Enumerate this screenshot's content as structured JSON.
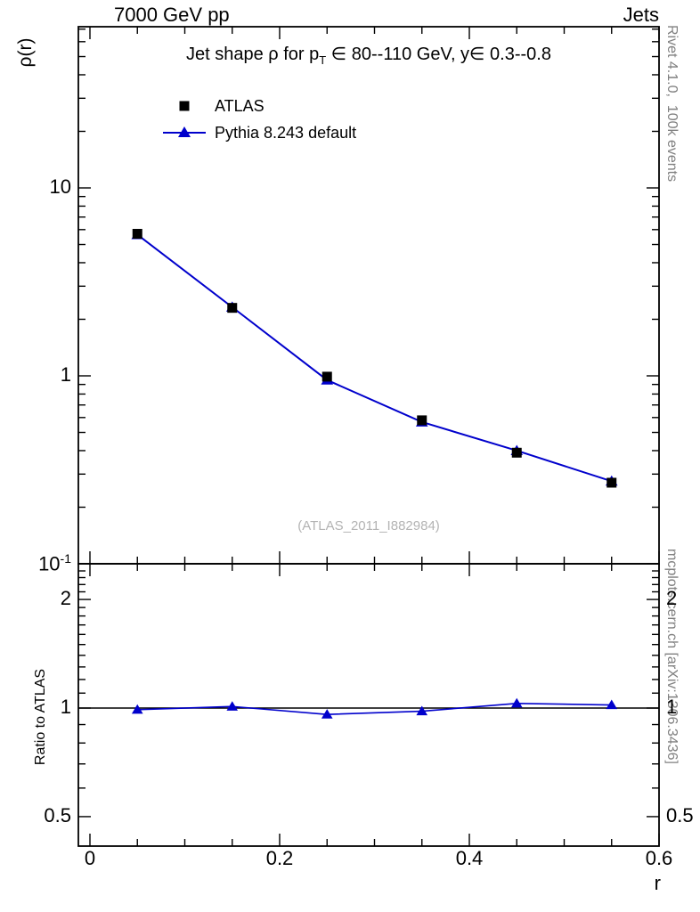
{
  "header": {
    "left": "7000 GeV pp",
    "right": "Jets"
  },
  "main_panel": {
    "y_axis_label": "ρ(r)",
    "title_parts": {
      "pre": "Jet shape ρ for p",
      "sub": "T",
      "post": " ∈ 80--110 GeV, y∈ 0.3--0.8"
    },
    "watermark": "(ATLAS_2011_I882984)",
    "legend": [
      {
        "label": "ATLAS",
        "marker": "square",
        "color": "#000000"
      },
      {
        "label": "Pythia 8.243 default",
        "marker": "triangle-line",
        "color": "#0000cc"
      }
    ]
  },
  "ratio_panel": {
    "y_axis_label": "Ratio to ATLAS"
  },
  "x_axis": {
    "label": "r"
  },
  "side_notes": {
    "top": "Rivet 4.1.0,  100k events",
    "bottom": "mcplots.cern.ch [arXiv:1306.3436]"
  },
  "chart_data": {
    "type": "line",
    "title": "Jet shape ρ for p_T ∈ 80--110 GeV, y ∈ 0.3--0.8",
    "xlabel": "r",
    "ylabel": "ρ(r)",
    "x": [
      0.05,
      0.15,
      0.25,
      0.35,
      0.45,
      0.55
    ],
    "series": [
      {
        "name": "ATLAS",
        "marker": "square",
        "color": "#000000",
        "values": [
          5.7,
          2.3,
          0.99,
          0.58,
          0.39,
          0.27
        ]
      },
      {
        "name": "Pythia 8.243 default",
        "marker": "triangle",
        "color": "#0000cc",
        "values": [
          5.64,
          2.32,
          0.95,
          0.568,
          0.4,
          0.275
        ]
      }
    ],
    "ratio": {
      "name": "Ratio to ATLAS",
      "definition": "Pythia 8.243 default / ATLAS",
      "values": [
        0.99,
        1.01,
        0.96,
        0.98,
        1.03,
        1.02
      ],
      "yscale": "log",
      "ylim": [
        0.414,
        2.51
      ],
      "yticks": [
        0.5,
        1,
        2
      ]
    },
    "x_axis": {
      "lim": [
        -0.012,
        0.6
      ],
      "ticks": [
        0,
        0.2,
        0.4,
        0.6
      ],
      "minor_step": 0.05
    },
    "y_axis": {
      "scale": "log",
      "lim": [
        0.1,
        72
      ],
      "ticks": [
        0.1,
        1,
        10
      ]
    },
    "y_tick_labels": [
      {
        "v": 10,
        "t": "10"
      },
      {
        "v": 1,
        "t": "1"
      },
      {
        "v": 0.1,
        "t": "10",
        "sup": "-1"
      }
    ],
    "ratio_tick_labels": [
      {
        "v": 2,
        "t": "2"
      },
      {
        "v": 1,
        "t": "1"
      },
      {
        "v": 0.5,
        "t": "0.5"
      }
    ],
    "x_tick_labels": [
      {
        "v": 0,
        "t": "0"
      },
      {
        "v": 0.2,
        "t": "0.2"
      },
      {
        "v": 0.4,
        "t": "0.4"
      },
      {
        "v": 0.6,
        "t": "0.6"
      }
    ],
    "legend_position": "top-left",
    "grid": false
  }
}
